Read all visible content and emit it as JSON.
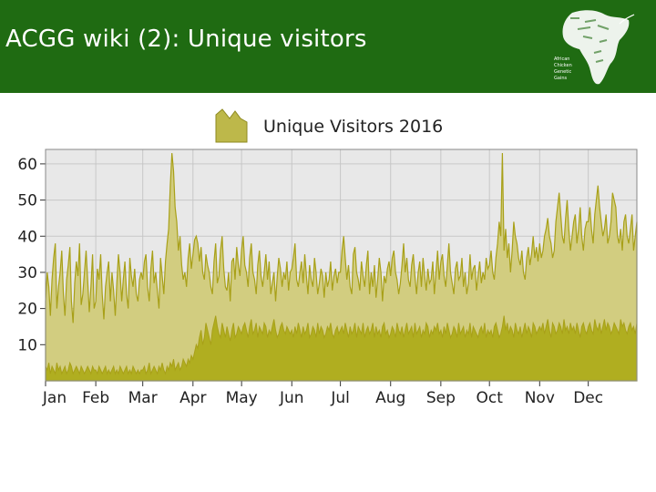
{
  "slide": {
    "title": "ACGG wiki (2): Unique visitors"
  },
  "logo": {
    "name": "acgg-africa-map-logo",
    "lines": [
      "African",
      "Chicken",
      "Genetic",
      "Gains"
    ]
  },
  "colors": {
    "header_bg": "#1f6b12",
    "plot_bg": "#e8e8e8",
    "fill_light": "#d2cd80",
    "fill_dark": "#b0ae20",
    "line": "#a8a018",
    "grid": "#c7c7c7"
  },
  "chart_data": {
    "type": "area",
    "title": "Unique Visitors 2016",
    "legend": {
      "label": "Unique Visitors 2016",
      "placement": "top-center"
    },
    "xlabel": "",
    "ylabel": "",
    "ylim": [
      0,
      64
    ],
    "yticks": [
      10,
      20,
      30,
      40,
      50,
      60
    ],
    "x_ticks": [
      "Jan",
      "Feb",
      "Mar",
      "Apr",
      "May",
      "Jun",
      "Jul",
      "Aug",
      "Sep",
      "Oct",
      "Nov",
      "Dec"
    ],
    "grid": true,
    "series": [
      {
        "name": "Unique Visitors 2016",
        "x_month_starts": [
          "Jan",
          "Feb",
          "Mar",
          "Apr",
          "May",
          "Jun",
          "Jul",
          "Aug",
          "Sep",
          "Oct",
          "Nov",
          "Dec"
        ],
        "monthly_values": [
          [
            22,
            30,
            26,
            18,
            28,
            34,
            38,
            20,
            26,
            30,
            36,
            24,
            18,
            28,
            32,
            37,
            22,
            16,
            27,
            33,
            29,
            38,
            21,
            24,
            30,
            36,
            28,
            19,
            26,
            35,
            20
          ],
          [
            22,
            31,
            28,
            35,
            24,
            17,
            26,
            30,
            33,
            22,
            30,
            25,
            18,
            27,
            35,
            30,
            22,
            28,
            33,
            24,
            20,
            34,
            29,
            26,
            31,
            24,
            22,
            28,
            30
          ],
          [
            28,
            33,
            35,
            26,
            22,
            31,
            36,
            27,
            30,
            25,
            20,
            34,
            29,
            24,
            33,
            38,
            42,
            54,
            63,
            58,
            48,
            44,
            36,
            40,
            32,
            28,
            30,
            26,
            34,
            38,
            31
          ],
          [
            35,
            39,
            40,
            38,
            33,
            37,
            30,
            28,
            35,
            32,
            30,
            26,
            24,
            33,
            38,
            27,
            29,
            36,
            40,
            31,
            26,
            25,
            30,
            22,
            33,
            34,
            28,
            37,
            32,
            29
          ],
          [
            36,
            40,
            32,
            30,
            26,
            34,
            38,
            30,
            28,
            24,
            32,
            36,
            29,
            26,
            30,
            35,
            28,
            33,
            24,
            27,
            30,
            22,
            29,
            34,
            31,
            26,
            30,
            28,
            33,
            25,
            30
          ],
          [
            31,
            34,
            38,
            28,
            26,
            30,
            33,
            27,
            35,
            29,
            24,
            32,
            28,
            26,
            34,
            30,
            24,
            27,
            31,
            29,
            23,
            30,
            26,
            28,
            33,
            25,
            29,
            31,
            27,
            30
          ],
          [
            30,
            36,
            40,
            34,
            28,
            32,
            26,
            24,
            35,
            37,
            30,
            28,
            25,
            33,
            29,
            26,
            32,
            36,
            24,
            30,
            26,
            32,
            23,
            28,
            34,
            30,
            22,
            29,
            27,
            31,
            33
          ],
          [
            29,
            34,
            36,
            30,
            28,
            24,
            27,
            32,
            38,
            30,
            34,
            28,
            26,
            32,
            35,
            29,
            24,
            30,
            33,
            26,
            34,
            29,
            25,
            31,
            27,
            28,
            33,
            24,
            30,
            36,
            28
          ],
          [
            33,
            35,
            29,
            26,
            32,
            38,
            30,
            27,
            24,
            31,
            33,
            28,
            29,
            34,
            26,
            30,
            24,
            27,
            35,
            28,
            31,
            32,
            25,
            29,
            33,
            27,
            30,
            28,
            34,
            31
          ],
          [
            32,
            36,
            30,
            28,
            34,
            38,
            44,
            40,
            63,
            36,
            42,
            34,
            38,
            30,
            36,
            44,
            40,
            38,
            34,
            32,
            36,
            30,
            28,
            34,
            37,
            32,
            35,
            40,
            34,
            37,
            33
          ],
          [
            38,
            34,
            36,
            40,
            42,
            45,
            40,
            38,
            34,
            36,
            44,
            48,
            52,
            46,
            40,
            38,
            45,
            50,
            42,
            36,
            40,
            44,
            46,
            38,
            42,
            48,
            40,
            36,
            42,
            44
          ],
          [
            44,
            48,
            42,
            38,
            46,
            50,
            54,
            48,
            44,
            40,
            42,
            46,
            38,
            40,
            44,
            52,
            50,
            48,
            40,
            38,
            42,
            36,
            44,
            46,
            40,
            38,
            42,
            46,
            36,
            40,
            44
          ]
        ]
      },
      {
        "name": "",
        "monthly_values": [
          [
            4,
            3,
            5,
            2,
            4,
            3,
            2,
            5,
            3,
            4,
            2,
            3,
            4,
            2,
            3,
            5,
            4,
            2,
            3,
            4,
            3,
            2,
            4,
            3,
            2,
            3,
            4,
            3,
            2,
            4,
            3
          ],
          [
            3,
            2,
            4,
            3,
            2,
            3,
            4,
            2,
            3,
            2,
            3,
            4,
            2,
            3,
            2,
            4,
            3,
            2,
            3,
            4,
            2,
            3,
            2,
            4,
            3,
            2,
            3,
            2,
            3
          ],
          [
            3,
            4,
            2,
            3,
            5,
            2,
            3,
            4,
            3,
            2,
            4,
            3,
            5,
            3,
            2,
            4,
            3,
            5,
            4,
            6,
            3,
            4,
            5,
            3,
            4,
            6,
            5,
            4,
            6,
            5,
            7
          ],
          [
            6,
            8,
            10,
            9,
            12,
            14,
            10,
            12,
            16,
            14,
            12,
            10,
            14,
            16,
            18,
            15,
            13,
            12,
            16,
            14,
            12,
            15,
            13,
            11,
            14,
            16,
            12,
            13,
            15,
            14
          ],
          [
            13,
            15,
            16,
            14,
            12,
            15,
            17,
            13,
            14,
            16,
            12,
            15,
            14,
            13,
            16,
            15,
            12,
            14,
            13,
            15,
            17,
            14,
            12,
            13,
            15,
            16,
            14,
            13,
            15,
            14,
            13
          ],
          [
            14,
            12,
            15,
            13,
            16,
            14,
            12,
            15,
            13,
            14,
            16,
            12,
            13,
            15,
            14,
            12,
            16,
            13,
            15,
            14,
            12,
            13,
            15,
            14,
            16,
            13,
            12,
            14,
            15,
            13
          ],
          [
            14,
            15,
            13,
            16,
            14,
            12,
            15,
            13,
            14,
            16,
            12,
            15,
            14,
            13,
            16,
            12,
            14,
            15,
            13,
            14,
            16,
            12,
            15,
            13,
            14,
            12,
            15,
            16,
            13,
            14,
            12
          ],
          [
            13,
            15,
            14,
            12,
            16,
            14,
            13,
            15,
            12,
            14,
            16,
            13,
            14,
            15,
            12,
            16,
            13,
            14,
            15,
            12,
            14,
            13,
            16,
            15,
            12,
            14,
            13,
            15,
            14,
            16,
            13
          ],
          [
            14,
            12,
            15,
            13,
            16,
            14,
            12,
            13,
            15,
            14,
            12,
            16,
            13,
            14,
            15,
            12,
            14,
            13,
            16,
            12,
            15,
            14,
            13,
            12,
            14,
            15,
            13,
            16,
            12,
            14
          ],
          [
            13,
            14,
            12,
            15,
            16,
            14,
            12,
            13,
            15,
            18,
            14,
            16,
            13,
            15,
            14,
            12,
            16,
            14,
            13,
            15,
            12,
            14,
            16,
            13,
            15,
            14,
            12,
            16,
            15,
            13,
            14
          ],
          [
            15,
            14,
            16,
            13,
            15,
            17,
            14,
            12,
            16,
            15,
            13,
            14,
            16,
            15,
            13,
            17,
            14,
            15,
            13,
            16,
            14,
            15,
            13,
            16,
            14,
            12,
            15,
            16,
            14,
            13
          ],
          [
            15,
            16,
            14,
            13,
            17,
            15,
            14,
            16,
            13,
            15,
            17,
            14,
            16,
            15,
            13,
            14,
            16,
            15,
            14,
            13,
            17,
            15,
            16,
            14,
            13,
            15,
            16,
            14,
            15,
            13,
            16
          ]
        ]
      }
    ]
  }
}
